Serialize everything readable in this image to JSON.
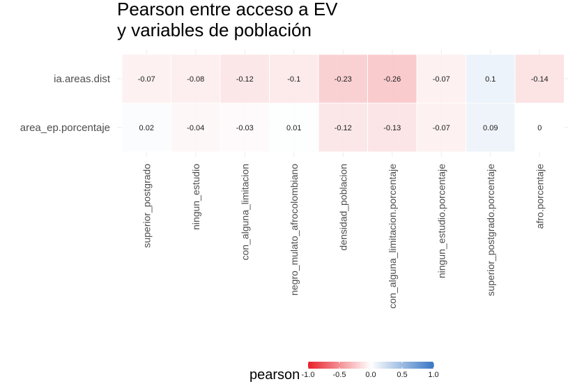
{
  "chart_data": {
    "type": "heatmap",
    "title_lines": [
      "Pearson entre acceso a EV",
      "y variables de población"
    ],
    "x_categories": [
      "superior_postgrado",
      "ningun_estudio",
      "con_alguna_limitacion",
      "negro_mulato_afrocolombiano",
      "densidad_poblacion",
      "con_alguna_limitacion.porcentaje",
      "ningun_estudio.porcentaje",
      "superior_postgrado.porcentaje",
      "afro.porcentaje"
    ],
    "y_categories": [
      "ia.areas.dist",
      "area_ep.porcentaje"
    ],
    "values": [
      [
        -0.07,
        -0.08,
        -0.12,
        -0.1,
        -0.23,
        -0.26,
        -0.07,
        0.1,
        -0.14
      ],
      [
        0.02,
        -0.04,
        -0.03,
        0.01,
        -0.12,
        -0.13,
        -0.07,
        0.09,
        0
      ]
    ],
    "labels": [
      [
        "-0.07",
        "-0.08",
        "-0.12",
        "-0.1",
        "-0.23",
        "-0.26",
        "-0.07",
        "0.1",
        "-0.14"
      ],
      [
        "0.02",
        "-0.04",
        "-0.03",
        "0.01",
        "-0.12",
        "-0.13",
        "-0.07",
        "0.09",
        "0"
      ]
    ],
    "legend": {
      "title": "pearson",
      "position": "bottom",
      "range": [
        -1,
        1
      ],
      "ticks": [
        "-1.0",
        "-0.5",
        "0.0",
        "0.5",
        "1.0"
      ],
      "tick_values": [
        -1,
        -0.5,
        0,
        0.5,
        1
      ],
      "low_color": "#e8202a",
      "mid_color": "#ffffff",
      "high_color": "#3a78c4"
    },
    "grid": true
  }
}
